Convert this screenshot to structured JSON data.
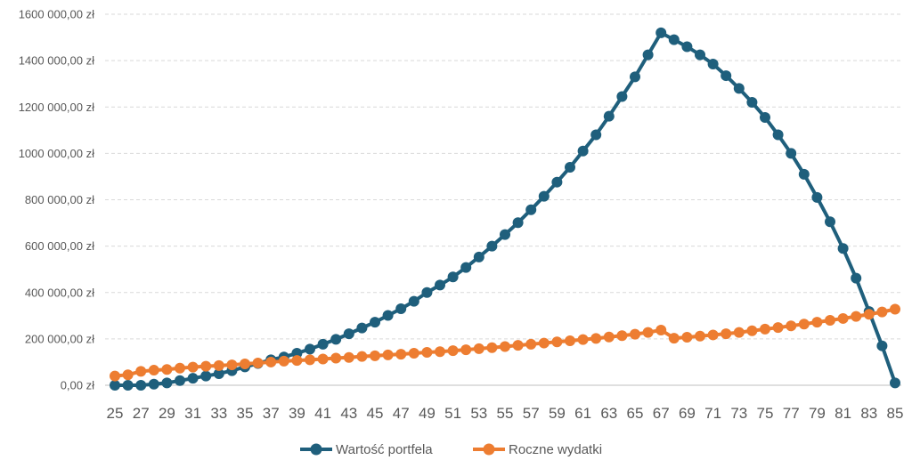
{
  "chart_data": {
    "type": "line",
    "title": "",
    "xlabel": "",
    "ylabel": "",
    "ylim": [
      0,
      1600000
    ],
    "grid": "horizontal dashed",
    "legend_position": "bottom",
    "y_tick_labels": [
      "0,00 zł",
      "200 000,00 zł",
      "400 000,00 zł",
      "600 000,00 zł",
      "800 000,00 zł",
      "1000 000,00 zł",
      "1200 000,00 zł",
      "1400 000,00 zł",
      "1600 000,00 zł"
    ],
    "y_tick_values": [
      0,
      200000,
      400000,
      600000,
      800000,
      1000000,
      1200000,
      1400000,
      1600000
    ],
    "x_tick_labels": [
      "25",
      "27",
      "29",
      "31",
      "33",
      "35",
      "37",
      "39",
      "41",
      "43",
      "45",
      "47",
      "49",
      "51",
      "53",
      "55",
      "57",
      "59",
      "61",
      "63",
      "65",
      "67",
      "69",
      "71",
      "73",
      "75",
      "77",
      "79",
      "81",
      "83",
      "85"
    ],
    "x": [
      25,
      26,
      27,
      28,
      29,
      30,
      31,
      32,
      33,
      34,
      35,
      36,
      37,
      38,
      39,
      40,
      41,
      42,
      43,
      44,
      45,
      46,
      47,
      48,
      49,
      50,
      51,
      52,
      53,
      54,
      55,
      56,
      57,
      58,
      59,
      60,
      61,
      62,
      63,
      64,
      65,
      66,
      67,
      68,
      69,
      70,
      71,
      72,
      73,
      74,
      75,
      76,
      77,
      78,
      79,
      80,
      81,
      82,
      83,
      84,
      85
    ],
    "series": [
      {
        "name": "Wartość portfela",
        "color": "#1f5f7c",
        "values": [
          0,
          0,
          0,
          5000,
          10000,
          20000,
          30000,
          40000,
          50000,
          63000,
          79000,
          94000,
          110000,
          122000,
          138000,
          156000,
          177000,
          198000,
          222000,
          247000,
          272000,
          301000,
          330000,
          362000,
          400000,
          432000,
          467000,
          508000,
          553000,
          600000,
          650000,
          701000,
          757000,
          815000,
          876000,
          940000,
          1010000,
          1080000,
          1160000,
          1245000,
          1330000,
          1425000,
          1520000,
          1490000,
          1460000,
          1425000,
          1385000,
          1335000,
          1280000,
          1220000,
          1155000,
          1080000,
          1000000,
          910000,
          810000,
          705000,
          590000,
          462000,
          318000,
          170000,
          10000
        ]
      },
      {
        "name": "Roczne wydatki",
        "color": "#ed7d31",
        "values": [
          40000,
          45000,
          60000,
          65000,
          68000,
          74000,
          78000,
          82000,
          85000,
          88000,
          92000,
          96000,
          100000,
          104000,
          107000,
          110000,
          113000,
          117000,
          120000,
          124000,
          127000,
          131000,
          134000,
          138000,
          142000,
          145000,
          149000,
          153000,
          158000,
          162000,
          167000,
          172000,
          177000,
          182000,
          187000,
          192000,
          197000,
          202000,
          208000,
          214000,
          220000,
          228000,
          238000,
          203000,
          207000,
          212000,
          217000,
          222000,
          228000,
          235000,
          242000,
          249000,
          256000,
          264000,
          272000,
          280000,
          288000,
          297000,
          306000,
          316000,
          328000
        ]
      }
    ]
  }
}
